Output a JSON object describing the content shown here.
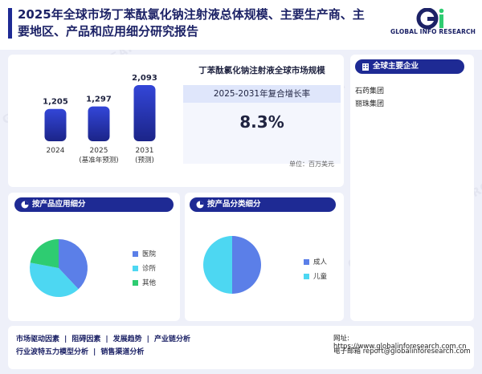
{
  "header": {
    "title": "2025年全球市场丁苯酞氯化钠注射液总体规模、主要生产商、主要地区、产品和应用细分研究报告",
    "logo_text": "GLOBAL INFO RESEARCH"
  },
  "market": {
    "title": "丁苯酞氯化钠注射液全球市场规模",
    "cagr_label": "2025-2031年复合增长率",
    "cagr_value": "8.3%",
    "unit": "单位：百万美元"
  },
  "chart_data": [
    {
      "type": "bar",
      "categories": [
        "2024",
        "2025",
        "2031"
      ],
      "category_notes": [
        "",
        "(基准年预测)",
        "(预测)"
      ],
      "values": [
        1205,
        1297,
        2093
      ],
      "value_labels": [
        "1,205",
        "1,297",
        "2,093"
      ]
    },
    {
      "type": "pie",
      "title": "按产品应用细分",
      "categories": [
        "医院",
        "诊所",
        "其他"
      ],
      "values": [
        38,
        40,
        22
      ],
      "colors": [
        "#5b7fe8",
        "#4dd7f2",
        "#2ecc71"
      ]
    },
    {
      "type": "pie",
      "title": "按产品分类细分",
      "categories": [
        "成人",
        "儿童"
      ],
      "values": [
        50,
        50
      ],
      "colors": [
        "#5b7fe8",
        "#4dd7f2"
      ]
    }
  ],
  "companies": {
    "title": "全球主要企业",
    "items": [
      "石药集团",
      "丽珠集团"
    ]
  },
  "sections": {
    "app_title": "按产品应用细分",
    "type_title": "按产品分类细分"
  },
  "footer": {
    "links_row1": [
      "市场驱动因素",
      "阻碍因素",
      "发展趋势",
      "产业链分析"
    ],
    "links_row2": [
      "行业波特五力模型分析",
      "销售渠道分析"
    ],
    "website_label": "网址",
    "website": "https://www.globalinforesearch.com.cn",
    "email_label": "电子邮箱",
    "email": "report@globalinforesearch.com"
  },
  "colors": {
    "primary": "#1e2a94",
    "hospital": "#5b7fe8",
    "clinic": "#4dd7f2",
    "other": "#2ecc71"
  }
}
